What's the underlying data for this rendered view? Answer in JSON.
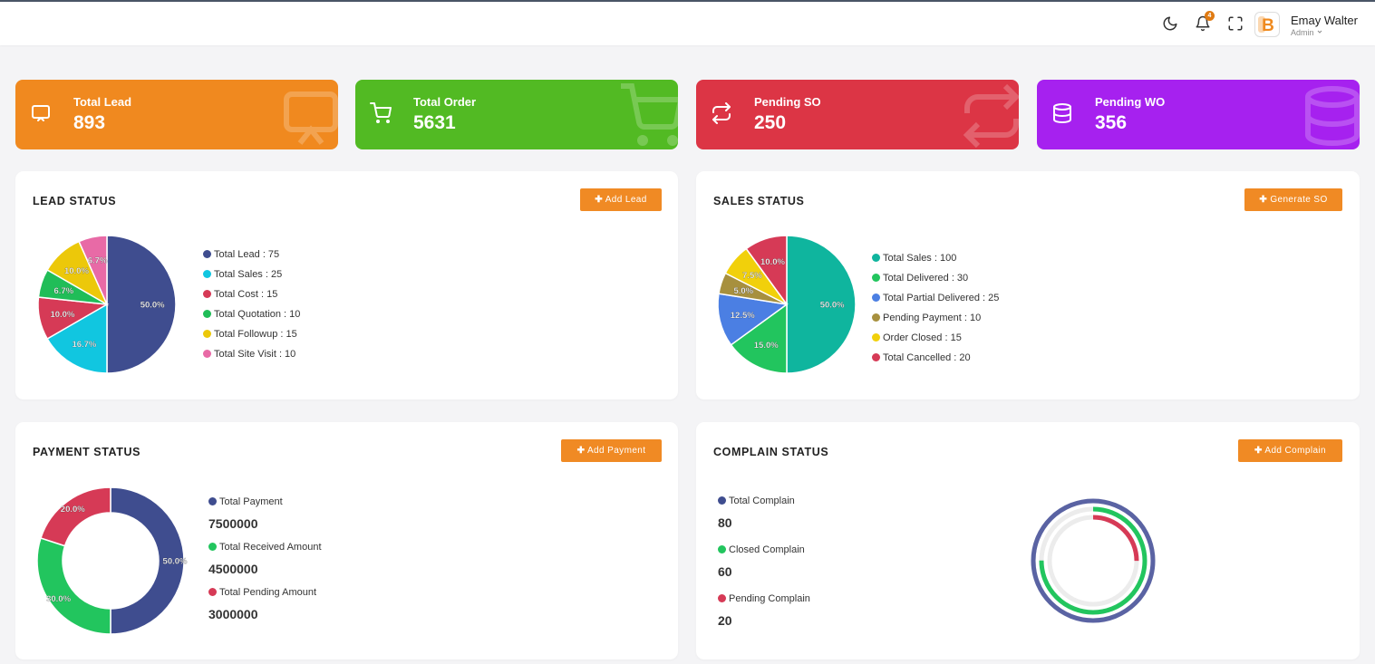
{
  "header": {
    "user_name": "Emay Walter",
    "user_role": "Admin",
    "notification_count": "4",
    "avatar_letter": "B"
  },
  "stats": [
    {
      "label": "Total Lead",
      "value": "893",
      "color": "#f0891f",
      "icon": "presentation-icon"
    },
    {
      "label": "Total Order",
      "value": "5631",
      "color": "#52ba23",
      "icon": "cart-icon"
    },
    {
      "label": "Pending SO",
      "value": "250",
      "color": "#dc3545",
      "icon": "repeat-icon"
    },
    {
      "label": "Pending WO",
      "value": "356",
      "color": "#a621ef",
      "icon": "database-icon"
    }
  ],
  "lead_status": {
    "title": "LEAD STATUS",
    "button": "Add Lead",
    "chart_data": {
      "type": "pie",
      "slice_labels": [
        "50.0%",
        "16.7%",
        "10.0%",
        "6.7%",
        "10.0%",
        "6.7%"
      ],
      "legend": [
        {
          "label": "Total Lead",
          "value": 75,
          "color": "#3f4d8f"
        },
        {
          "label": "Total Sales",
          "value": 25,
          "color": "#11c6e0"
        },
        {
          "label": "Total Cost",
          "value": 15,
          "color": "#d63a56"
        },
        {
          "label": "Total Quotation",
          "value": 10,
          "color": "#20bd58"
        },
        {
          "label": "Total Followup",
          "value": 15,
          "color": "#ecc80a"
        },
        {
          "label": "Total Site Visit",
          "value": 10,
          "color": "#e86aa6"
        }
      ]
    }
  },
  "sales_status": {
    "title": "SALES STATUS",
    "button": "Generate SO",
    "chart_data": {
      "type": "pie",
      "slice_labels": [
        "50.0%",
        "15.0%",
        "12.5%",
        "5.0%",
        "7.5%",
        "10.0%"
      ],
      "legend": [
        {
          "label": "Total Sales",
          "value": 100,
          "color": "#0fb59e"
        },
        {
          "label": "Total Delivered",
          "value": 30,
          "color": "#22c55e"
        },
        {
          "label": "Total Partial Delivered",
          "value": 25,
          "color": "#4b7fe3"
        },
        {
          "label": "Pending Payment",
          "value": 10,
          "color": "#a7903e"
        },
        {
          "label": "Order Closed",
          "value": 15,
          "color": "#f1d00b"
        },
        {
          "label": "Total Cancelled",
          "value": 20,
          "color": "#d63a56"
        }
      ]
    }
  },
  "payment_status": {
    "title": "PAYMENT STATUS",
    "button": "Add Payment",
    "items": [
      {
        "label": "Total Payment",
        "value": "7500000",
        "color": "#3f4d8f"
      },
      {
        "label": "Total Received Amount",
        "value": "4500000",
        "color": "#22c55e"
      },
      {
        "label": "Total Pending Amount",
        "value": "3000000",
        "color": "#d63a56"
      }
    ],
    "chart_data": {
      "type": "pie",
      "variant": "donut",
      "slices": [
        {
          "label": "50.0%",
          "value": 50.0,
          "color": "#3f4d8f"
        },
        {
          "label": "30.0%",
          "value": 30.0,
          "color": "#22c55e"
        },
        {
          "label": "20.0%",
          "value": 20.0,
          "color": "#d63a56"
        }
      ]
    }
  },
  "complain_status": {
    "title": "COMPLAIN STATUS",
    "button": "Add Complain",
    "items": [
      {
        "label": "Total Complain",
        "value": "80",
        "color": "#3f4d8f"
      },
      {
        "label": "Closed Complain",
        "value": "60",
        "color": "#22c55e"
      },
      {
        "label": "Pending Complain",
        "value": "20",
        "color": "#d63a56"
      }
    ],
    "chart_data": {
      "type": "radial_bar",
      "series": [
        {
          "name": "Total Complain",
          "fraction": 1.0,
          "color": "#5a63a3"
        },
        {
          "name": "Closed Complain",
          "fraction": 0.75,
          "color": "#22c55e"
        },
        {
          "name": "Pending Complain",
          "fraction": 0.25,
          "color": "#d63a56"
        }
      ]
    }
  }
}
